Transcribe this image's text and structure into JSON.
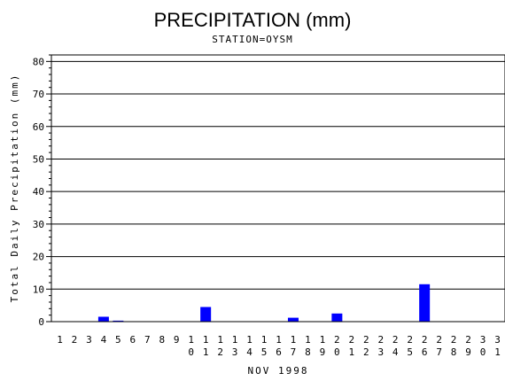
{
  "chart_data": {
    "type": "bar",
    "title": "PRECIPITATION (mm)",
    "subtitle": "STATION=OYSM",
    "xlabel": "NOV 1998",
    "ylabel": "Total Daily Precipitation (mm)",
    "ylim": [
      0,
      82
    ],
    "yticks": [
      0,
      10,
      20,
      30,
      40,
      50,
      60,
      70,
      80
    ],
    "grid": true,
    "bar_color": "#0000ff",
    "categories": [
      "1",
      "2",
      "3",
      "4",
      "5",
      "6",
      "7",
      "8",
      "9",
      "10",
      "11",
      "12",
      "13",
      "14",
      "15",
      "16",
      "17",
      "18",
      "19",
      "20",
      "21",
      "22",
      "23",
      "24",
      "25",
      "26",
      "27",
      "28",
      "29",
      "30",
      "31"
    ],
    "values": [
      0,
      0,
      0,
      1.5,
      0.3,
      0,
      0,
      0,
      0,
      0,
      4.5,
      0,
      0,
      0,
      0,
      0,
      1.2,
      0,
      0,
      2.5,
      0,
      0,
      0,
      0,
      0,
      11.5,
      0,
      0,
      0,
      0,
      0
    ]
  }
}
